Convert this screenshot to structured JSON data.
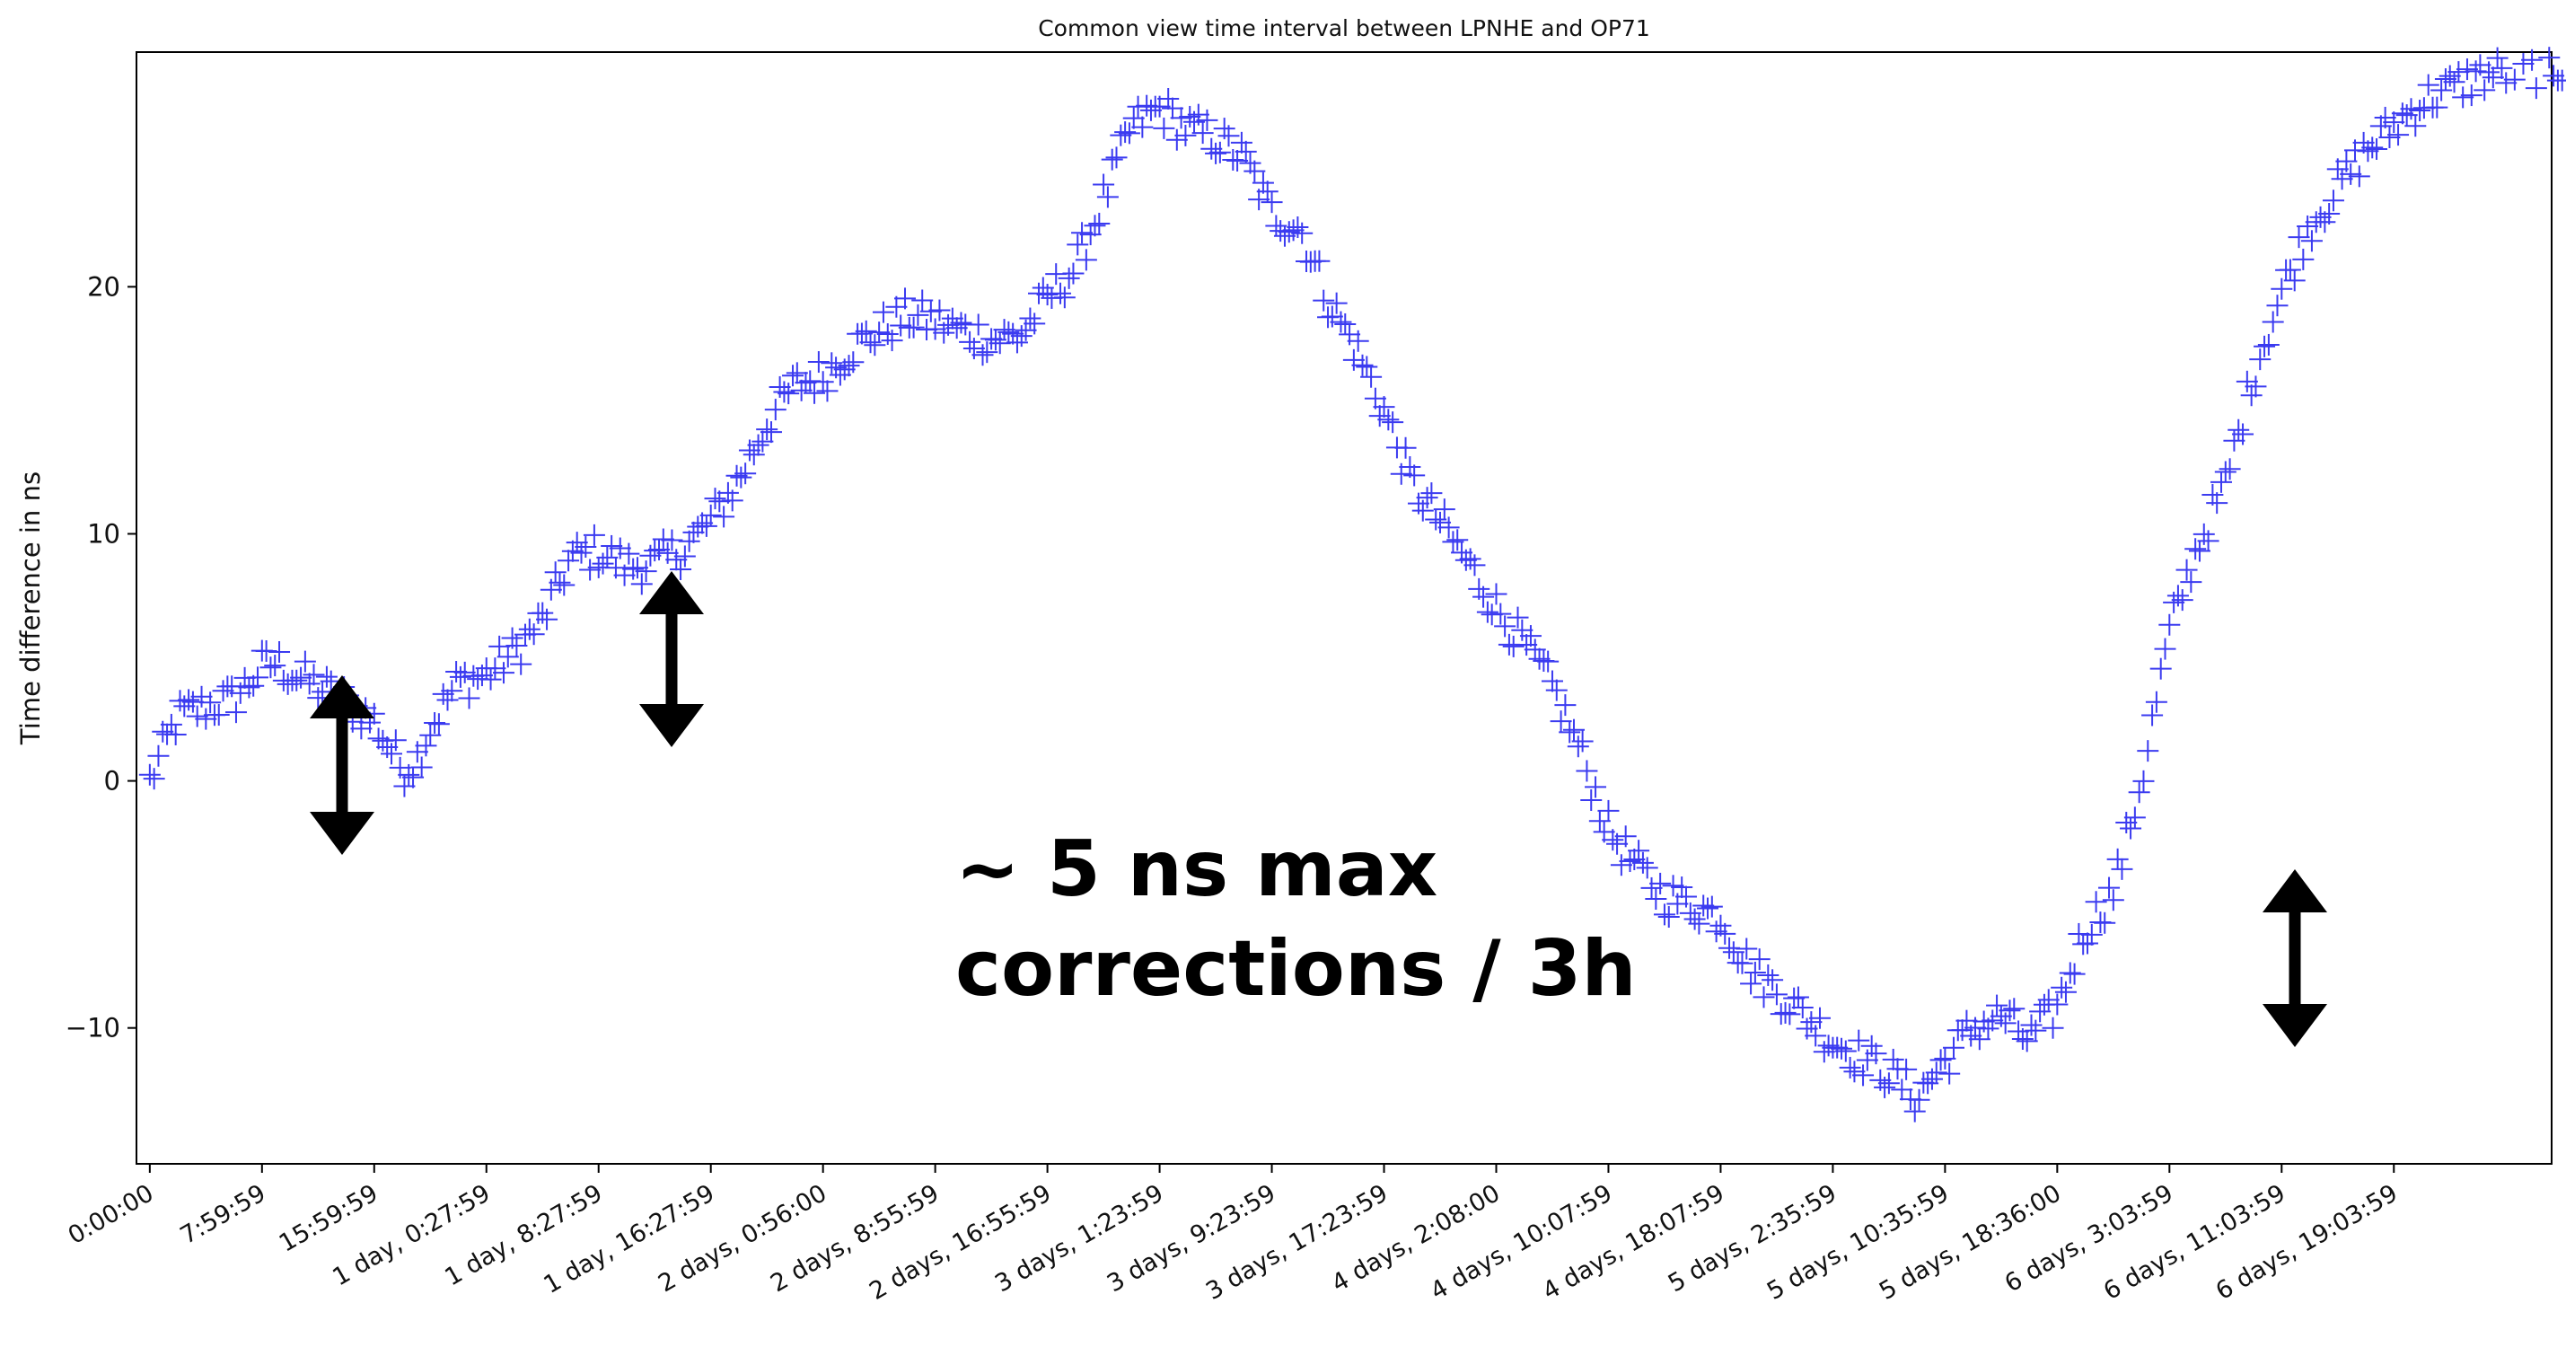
{
  "chart_data": {
    "type": "scatter",
    "title": "Common view time interval between LPNHE and OP71",
    "xlabel": "",
    "ylabel": "Time difference in ns",
    "marker": "+",
    "color": "#3b3bf0",
    "grid": false,
    "legend": "none",
    "xlim": [
      "-0:57:00",
      "7 days, 3:15:00"
    ],
    "ylim": [
      -15.5,
      29.5
    ],
    "y_ticks": [
      20,
      10,
      0,
      -10
    ],
    "y_tick_labels": [
      "20",
      "10",
      "0",
      "−10"
    ],
    "x_ticks": [
      "0:00:00",
      "7:59:59",
      "15:59:59",
      "1 day, 0:27:59",
      "1 day, 8:27:59",
      "1 day, 16:27:59",
      "2 days, 0:56:00",
      "2 days, 8:55:59",
      "2 days, 16:55:59",
      "3 days, 1:23:59",
      "3 days, 9:23:59",
      "3 days, 17:23:59",
      "4 days, 2:08:00",
      "4 days, 10:07:59",
      "4 days, 18:07:59",
      "5 days, 2:35:59",
      "5 days, 10:35:59",
      "5 days, 18:36:00",
      "6 days, 3:03:59",
      "6 days, 11:03:59",
      "6 days, 19:03:59"
    ],
    "x_unit": "hours since 0:00:00",
    "trend_x": [
      0,
      2,
      4,
      6,
      8,
      9,
      10,
      12,
      14,
      16,
      18,
      19,
      20,
      22,
      24,
      26,
      28,
      30,
      32,
      34,
      36,
      38,
      40,
      42,
      44,
      46,
      48,
      50,
      52,
      54,
      56,
      58,
      60,
      62,
      64,
      66,
      68,
      70,
      72,
      74,
      76,
      78,
      80,
      82,
      84,
      86,
      88,
      90,
      92,
      94,
      96,
      98,
      100,
      102,
      104,
      106,
      108,
      110,
      112,
      114,
      116,
      118,
      120,
      122,
      124,
      126,
      128,
      130,
      132,
      134,
      136,
      138,
      140,
      142,
      144,
      146,
      148,
      150,
      152,
      154,
      156,
      158,
      160,
      162,
      164,
      166,
      168,
      170,
      172
    ],
    "trend_y": [
      0,
      2.6,
      3,
      3.3,
      4.6,
      4.8,
      4.4,
      3.8,
      3.2,
      2.4,
      0.5,
      0.8,
      2.2,
      4.0,
      4.3,
      5.2,
      6.5,
      9.0,
      9.3,
      8.7,
      8.8,
      9.4,
      10.5,
      12.2,
      14.5,
      16.0,
      16.4,
      17.5,
      18.2,
      18.8,
      18.6,
      18.2,
      17.9,
      18.0,
      19.5,
      20.8,
      23.5,
      26.5,
      27.2,
      26.4,
      26.0,
      25.2,
      23.0,
      22.4,
      19.5,
      17.5,
      15.0,
      12.0,
      10.5,
      8.8,
      7.0,
      5.5,
      3.8,
      1.2,
      -2.0,
      -3.5,
      -4.7,
      -5.0,
      -5.5,
      -7.5,
      -8.5,
      -9.5,
      -10.5,
      -11.2,
      -11.8,
      -12.8,
      -11.3,
      -10.0,
      -9.5,
      -10.5,
      -9.2,
      -6.0,
      -4.5,
      0.0,
      6.0,
      9.5,
      12.0,
      16.5,
      19.8,
      22.5,
      24.0,
      25.5,
      26.5,
      27.5,
      28.0,
      28.5,
      28.7,
      28.8,
      28.9
    ],
    "x_data_max": 172
  },
  "annotations": {
    "text_line1": "~ 5 ns max",
    "text_line2": "corrections / 3h"
  }
}
